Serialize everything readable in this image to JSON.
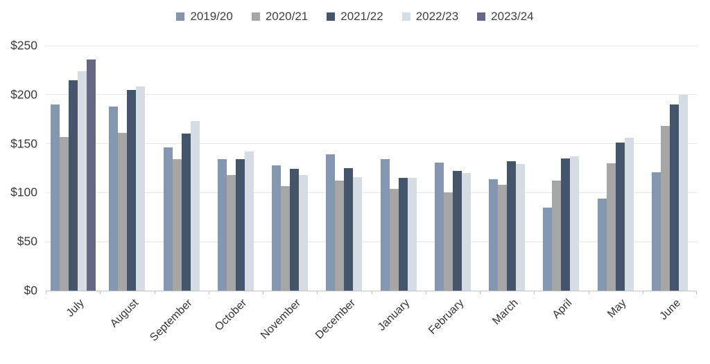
{
  "chart_data": {
    "type": "bar",
    "title": "",
    "xlabel": "",
    "ylabel": "",
    "legend_position": "top",
    "grid": true,
    "categories": [
      "July",
      "August",
      "September",
      "October",
      "November",
      "December",
      "January",
      "February",
      "March",
      "April",
      "May",
      "June"
    ],
    "series": [
      {
        "name": "2019/20",
        "color": "#8496B0",
        "values": [
          190,
          188,
          146,
          134,
          128,
          139,
          134,
          131,
          114,
          85,
          94,
          121
        ]
      },
      {
        "name": "2020/21",
        "color": "#A6A6A6",
        "values": [
          157,
          161,
          134,
          118,
          107,
          112,
          104,
          100,
          108,
          112,
          130,
          168
        ]
      },
      {
        "name": "2021/22",
        "color": "#44546A",
        "values": [
          215,
          205,
          160,
          134,
          124,
          125,
          115,
          122,
          132,
          135,
          151,
          190
        ]
      },
      {
        "name": "2022/23",
        "color": "#D6DCE4",
        "values": [
          224,
          208,
          173,
          142,
          118,
          116,
          115,
          120,
          129,
          137,
          156,
          200
        ]
      },
      {
        "name": "2023/24",
        "color": "#666687",
        "values": [
          236,
          null,
          null,
          null,
          null,
          null,
          null,
          null,
          null,
          null,
          null,
          null
        ]
      }
    ],
    "y_axis": {
      "min": 0,
      "max": 250,
      "step": 50,
      "prefix": "$",
      "ticks": [
        "$0",
        "$50",
        "$100",
        "$150",
        "$200",
        "$250"
      ]
    }
  },
  "colors": {
    "background": "#ffffff",
    "gridline": "#e8e8e8",
    "axis_line": "#bfbfbf",
    "label_text": "#3f3f3f"
  }
}
